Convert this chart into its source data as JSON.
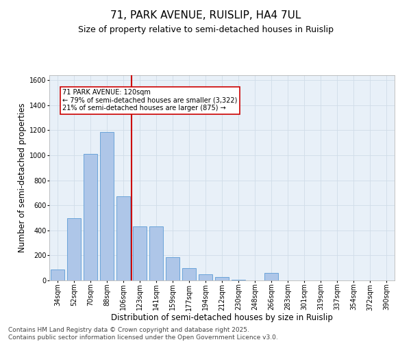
{
  "title1": "71, PARK AVENUE, RUISLIP, HA4 7UL",
  "title2": "Size of property relative to semi-detached houses in Ruislip",
  "xlabel": "Distribution of semi-detached houses by size in Ruislip",
  "ylabel": "Number of semi-detached properties",
  "categories": [
    "34sqm",
    "52sqm",
    "70sqm",
    "88sqm",
    "106sqm",
    "123sqm",
    "141sqm",
    "159sqm",
    "177sqm",
    "194sqm",
    "212sqm",
    "230sqm",
    "248sqm",
    "266sqm",
    "283sqm",
    "301sqm",
    "319sqm",
    "337sqm",
    "354sqm",
    "372sqm",
    "390sqm"
  ],
  "values": [
    90,
    500,
    1010,
    1185,
    670,
    430,
    430,
    185,
    100,
    50,
    30,
    5,
    0,
    60,
    0,
    0,
    0,
    0,
    0,
    0,
    0
  ],
  "bar_color": "#aec6e8",
  "bar_edge_color": "#5b9bd5",
  "vline_index": 5,
  "vline_color": "#cc0000",
  "annotation_title": "71 PARK AVENUE: 120sqm",
  "annotation_line1": "← 79% of semi-detached houses are smaller (3,322)",
  "annotation_line2": "21% of semi-detached houses are larger (875) →",
  "annotation_box_color": "#ffffff",
  "annotation_box_edge": "#cc0000",
  "ylim": [
    0,
    1640
  ],
  "yticks": [
    0,
    200,
    400,
    600,
    800,
    1000,
    1200,
    1400,
    1600
  ],
  "grid_color": "#d0dce8",
  "background_color": "#e8f0f8",
  "footer1": "Contains HM Land Registry data © Crown copyright and database right 2025.",
  "footer2": "Contains public sector information licensed under the Open Government Licence v3.0.",
  "title_fontsize": 11,
  "subtitle_fontsize": 9,
  "axis_label_fontsize": 8.5,
  "tick_fontsize": 7,
  "footer_fontsize": 6.5
}
